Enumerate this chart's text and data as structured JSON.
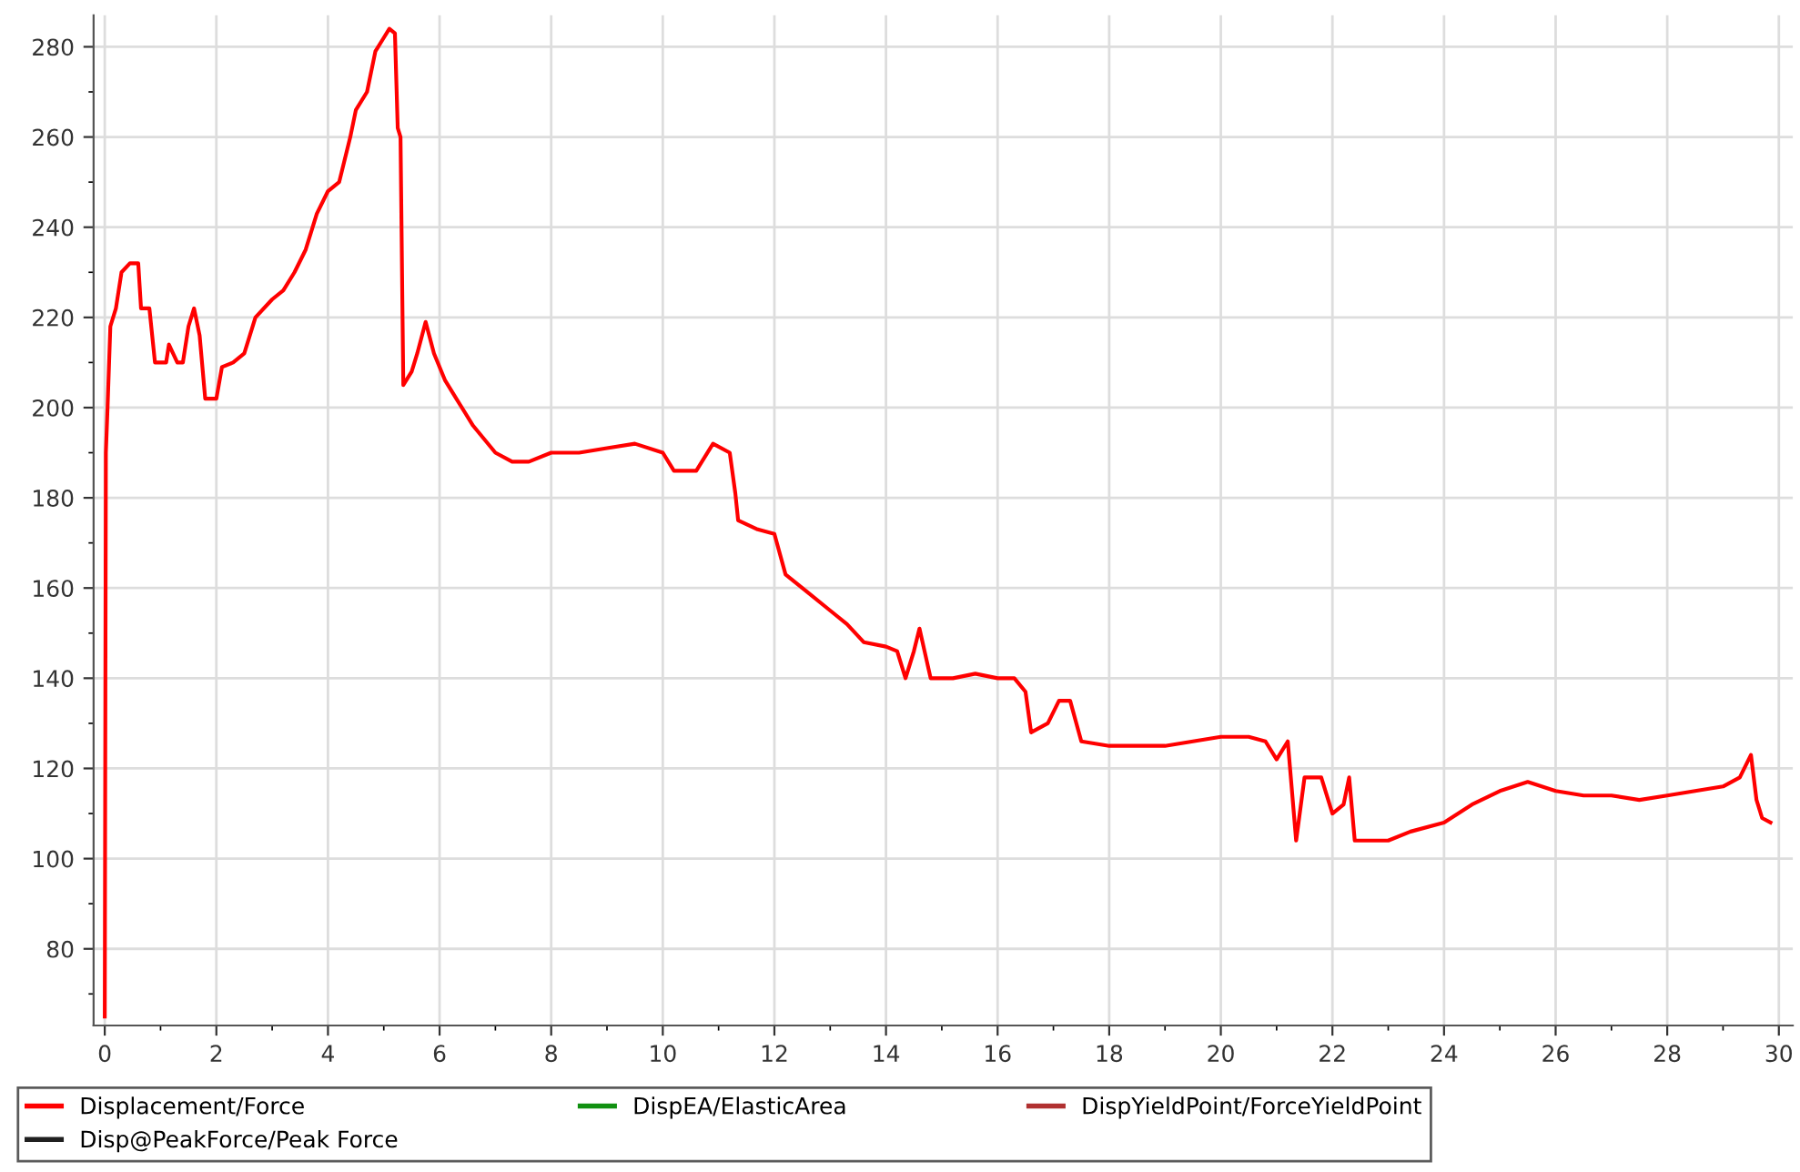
{
  "chart_data": {
    "type": "line",
    "xlim": [
      -0.2,
      30.25
    ],
    "ylim": [
      63,
      287
    ],
    "xticks": [
      0,
      {
        "value": 1,
        "label": null
      },
      2,
      {
        "value": 3,
        "label": null
      },
      4,
      {
        "value": 5,
        "label": null
      },
      6,
      {
        "value": 7,
        "label": null
      },
      8,
      {
        "value": 9,
        "label": null
      },
      10,
      {
        "value": 11,
        "label": null
      },
      12,
      {
        "value": 13,
        "label": null
      },
      14,
      {
        "value": 15,
        "label": null
      },
      16,
      {
        "value": 17,
        "label": null
      },
      18,
      {
        "value": 19,
        "label": null
      },
      20,
      {
        "value": 21,
        "label": null
      },
      22,
      {
        "value": 23,
        "label": null
      },
      24,
      {
        "value": 25,
        "label": null
      },
      26,
      {
        "value": 27,
        "label": null
      },
      28,
      {
        "value": 29,
        "label": null
      },
      30
    ],
    "yticks": [
      {
        "value": 70,
        "label": null
      },
      80,
      {
        "value": 90,
        "label": null
      },
      100,
      {
        "value": 110,
        "label": null
      },
      120,
      {
        "value": 130,
        "label": null
      },
      140,
      {
        "value": 150,
        "label": null
      },
      160,
      {
        "value": 170,
        "label": null
      },
      180,
      {
        "value": 190,
        "label": null
      },
      200,
      {
        "value": 210,
        "label": null
      },
      220,
      {
        "value": 230,
        "label": null
      },
      240,
      {
        "value": 250,
        "label": null
      },
      260,
      {
        "value": 270,
        "label": null
      },
      280
    ],
    "grid": true,
    "legend": "bottom",
    "marker": "none",
    "line_style": "solid",
    "series": [
      {
        "name": "Displacement/Force",
        "color": "#ff0000",
        "x": [
          0.0,
          0.02,
          0.05,
          0.1,
          0.2,
          0.3,
          0.45,
          0.6,
          0.65,
          0.8,
          0.9,
          1.1,
          1.15,
          1.3,
          1.4,
          1.5,
          1.6,
          1.7,
          1.8,
          2.0,
          2.1,
          2.3,
          2.5,
          2.7,
          3.0,
          3.2,
          3.4,
          3.6,
          3.8,
          4.0,
          4.2,
          4.4,
          4.5,
          4.7,
          4.85,
          5.0,
          5.1,
          5.2,
          5.25,
          5.3,
          5.35,
          5.5,
          5.6,
          5.75,
          5.9,
          6.1,
          6.3,
          6.6,
          7.0,
          7.3,
          7.6,
          8.0,
          8.5,
          9.0,
          9.5,
          10.0,
          10.2,
          10.6,
          10.9,
          11.2,
          11.3,
          11.35,
          11.7,
          12.0,
          12.2,
          12.6,
          13.0,
          13.3,
          13.6,
          14.0,
          14.2,
          14.35,
          14.5,
          14.6,
          14.8,
          15.2,
          15.6,
          16.0,
          16.3,
          16.5,
          16.6,
          16.9,
          17.1,
          17.3,
          17.5,
          18.0,
          18.5,
          19.0,
          19.5,
          20.0,
          20.5,
          20.8,
          21.0,
          21.2,
          21.35,
          21.5,
          21.8,
          22.0,
          22.2,
          22.3,
          22.4,
          23.0,
          23.4,
          24.0,
          24.5,
          25.0,
          25.5,
          26.0,
          26.5,
          27.0,
          27.5,
          28.0,
          28.5,
          29.0,
          29.3,
          29.5,
          29.6,
          29.7,
          29.85
        ],
        "values": [
          65,
          190,
          200,
          218,
          222,
          230,
          232,
          232,
          222,
          222,
          210,
          210,
          214,
          210,
          210,
          218,
          222,
          216,
          202,
          202,
          209,
          210,
          212,
          220,
          224,
          226,
          230,
          235,
          243,
          248,
          250,
          260,
          266,
          270,
          279,
          282,
          284,
          283,
          262,
          260,
          205,
          208,
          212,
          219,
          212,
          206,
          202,
          196,
          190,
          188,
          188,
          190,
          190,
          191,
          192,
          190,
          186,
          186,
          192,
          190,
          181,
          175,
          173,
          172,
          163,
          159,
          155,
          152,
          148,
          147,
          146,
          140,
          146,
          151,
          140,
          140,
          141,
          140,
          140,
          137,
          128,
          130,
          135,
          135,
          126,
          125,
          125,
          125,
          126,
          127,
          127,
          126,
          122,
          126,
          104,
          118,
          118,
          110,
          112,
          118,
          104,
          104,
          106,
          108,
          112,
          115,
          117,
          115,
          114,
          114,
          113,
          114,
          115,
          116,
          118,
          123,
          113,
          109,
          108
        ]
      },
      {
        "name": "DispEA/ElasticArea",
        "color": "#109010"
      },
      {
        "name": "DispYieldPoint/ForceYieldPoint",
        "color": "#b03030"
      },
      {
        "name": "Disp@PeakForce/Peak Force",
        "color": "#202020"
      }
    ]
  }
}
